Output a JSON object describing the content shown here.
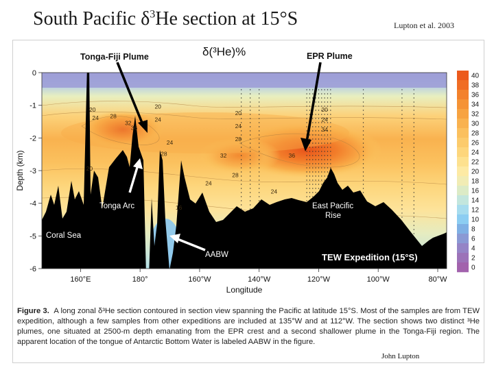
{
  "slide": {
    "title": "South Pacific δ³He section at 15°S",
    "title_parts": {
      "pre": "South Pacific δ",
      "sup": "3",
      "post": "He section at 15°S"
    },
    "credit_top": "Lupton et al. 2003",
    "credit_bottom": "John Lupton"
  },
  "caption": {
    "label": "Figure 3.",
    "text": "A long zonal δ³He section contoured in section view spanning the Pacific at latitude 15°S. Most of the samples are from TEW expedition, although a few samples from other expeditions are included at 135°W and at 112°W. The section shows two distinct ³He plumes, one situated at 2500-m depth emanating from the EPR crest and a second shallower plume in the Tonga-Fiji region. The apparent location of the tongue of Antarctic Bottom Water is labeled AABW in the figure."
  },
  "chart_data": {
    "type": "heatmap",
    "title": "δ(³He)%",
    "xlabel": "Longitude",
    "ylabel": "Depth (km)",
    "x_ticks": [
      "160°E",
      "180°",
      "160°W",
      "140°W",
      "120°W",
      "100°W",
      "80°W"
    ],
    "x_tick_values": [
      160,
      180,
      200,
      220,
      240,
      260,
      280
    ],
    "xlim": [
      147,
      283
    ],
    "y_ticks": [
      "0",
      "-1",
      "-2",
      "-3",
      "-4",
      "-5",
      "-6"
    ],
    "y_tick_values": [
      0,
      -1,
      -2,
      -3,
      -4,
      -5,
      -6
    ],
    "ylim": [
      -6,
      0
    ],
    "colorbar": {
      "ticks": [
        "40",
        "38",
        "36",
        "34",
        "32",
        "30",
        "28",
        "26",
        "24",
        "22",
        "20",
        "18",
        "16",
        "14",
        "12",
        "10",
        "8",
        "6",
        "4",
        "2",
        "0"
      ],
      "colors": [
        "#ec5a1c",
        "#f06d24",
        "#f3812c",
        "#f59336",
        "#f7a341",
        "#f9b24f",
        "#fbc05e",
        "#fccb6c",
        "#fdd67c",
        "#fde18f",
        "#fdeaa4",
        "#f1ecb4",
        "#dcebc6",
        "#c3e6dd",
        "#a7dcee",
        "#8ccdf2",
        "#7fb0e4",
        "#8a99d4",
        "#9584c6",
        "#9c72b8",
        "#a262ad"
      ]
    },
    "annotations": [
      "Tonga-Fiji Plume",
      "EPR Plume",
      "Tonga Arc",
      "Coral Sea",
      "AABW",
      "East Pacific Rise",
      "TEW Expedition (15°S)"
    ],
    "contour_labels": [
      {
        "text": "20",
        "lon": 164,
        "depth": -1.2
      },
      {
        "text": "24",
        "lon": 165,
        "depth": -1.45
      },
      {
        "text": "28",
        "lon": 171,
        "depth": -1.4
      },
      {
        "text": "32",
        "lon": 176,
        "depth": -1.6
      },
      {
        "text": "36",
        "lon": 178,
        "depth": -1.75
      },
      {
        "text": "20",
        "lon": 186,
        "depth": -1.1
      },
      {
        "text": "24",
        "lon": 186,
        "depth": -1.5
      },
      {
        "text": "24",
        "lon": 190,
        "depth": -2.2
      },
      {
        "text": "28",
        "lon": 188,
        "depth": -2.55
      },
      {
        "text": "20",
        "lon": 163,
        "depth": -3.0
      },
      {
        "text": "20",
        "lon": 213,
        "depth": -1.3
      },
      {
        "text": "24",
        "lon": 213,
        "depth": -1.7
      },
      {
        "text": "28",
        "lon": 213,
        "depth": -2.1
      },
      {
        "text": "32",
        "lon": 208,
        "depth": -2.6
      },
      {
        "text": "28",
        "lon": 212,
        "depth": -3.2
      },
      {
        "text": "24",
        "lon": 203,
        "depth": -3.45
      },
      {
        "text": "16",
        "lon": 193,
        "depth": -4.2
      },
      {
        "text": "24",
        "lon": 225,
        "depth": -3.7
      },
      {
        "text": "36",
        "lon": 231,
        "depth": -2.6
      },
      {
        "text": "20",
        "lon": 242,
        "depth": -1.2
      },
      {
        "text": "24",
        "lon": 242,
        "depth": -1.5
      },
      {
        "text": "34",
        "lon": 242,
        "depth": -1.8
      }
    ]
  }
}
